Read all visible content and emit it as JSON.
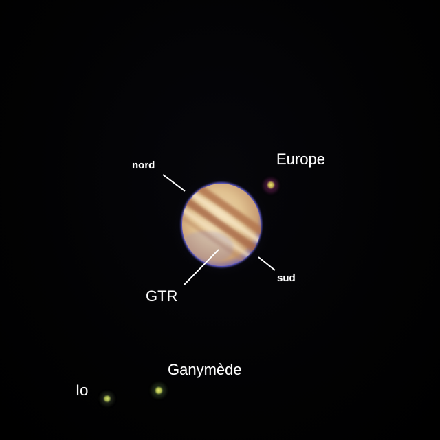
{
  "labels": {
    "nord": "nord",
    "sud": "sud",
    "gtr": "GTR",
    "europe": "Europe",
    "ganymede": "Ganymède",
    "io": "Io"
  },
  "colors": {
    "background": "#000000",
    "label_text": "#ffffff",
    "pointer_line": "#ffffff",
    "planet_body": "#e6c99a",
    "planet_band": "#b57a52",
    "planet_rim": "#5a5ad0",
    "moon_europe": "#b2a24a",
    "moon_ganymede": "#a8b24a",
    "moon_io": "#9aa84a"
  },
  "objects": {
    "planet": "jupiter",
    "moons": [
      "europe",
      "ganymede",
      "io"
    ]
  }
}
